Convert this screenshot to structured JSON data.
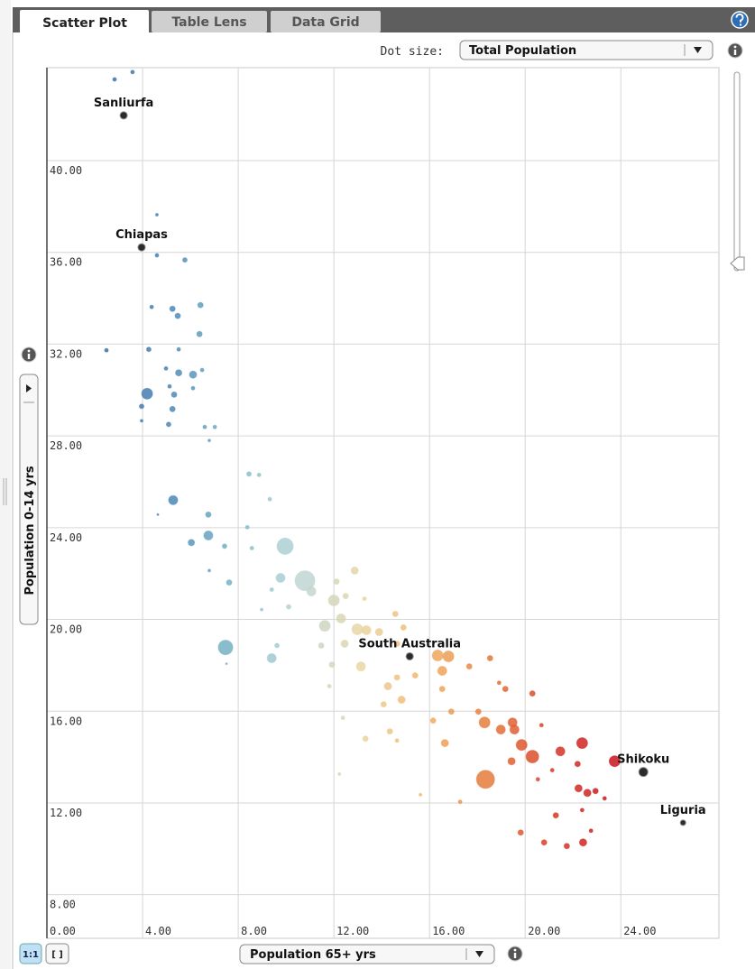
{
  "tabs": [
    "Scatter Plot",
    "Table Lens",
    "Data Grid"
  ],
  "dot_size_label": "Dot size:",
  "dot_size_value": "Total Population",
  "buttons": [
    "1:1",
    "[ ]"
  ],
  "chart_data": {
    "type": "scatter",
    "xlabel": "Population 65+ yrs",
    "ylabel": "Population 0-14 yrs",
    "xlim": [
      0,
      28.1
    ],
    "ylim": [
      6.1,
      44.05
    ],
    "xticks": [
      {
        "value": 0,
        "label": "0.00"
      },
      {
        "value": 4,
        "label": "4.00"
      },
      {
        "value": 8,
        "label": "8.00"
      },
      {
        "value": 12,
        "label": "12.00"
      },
      {
        "value": 16,
        "label": "16.00"
      },
      {
        "value": 20,
        "label": "20.00"
      },
      {
        "value": 24,
        "label": "24.00"
      }
    ],
    "yticks": [
      {
        "value": 8,
        "label": "8.00"
      },
      {
        "value": 12,
        "label": "12.00"
      },
      {
        "value": 16,
        "label": "16.00"
      },
      {
        "value": 20,
        "label": "20.00"
      },
      {
        "value": 24,
        "label": "24.00"
      },
      {
        "value": 28,
        "label": "28.00"
      },
      {
        "value": 32,
        "label": "32.00"
      },
      {
        "value": 36,
        "label": "36.00"
      },
      {
        "value": 40,
        "label": "40.00"
      }
    ],
    "grid": true,
    "color_scale": [
      "#3a6ea5",
      "#4a86b4",
      "#7ab6c6",
      "#b9d6d8",
      "#e8d6a4",
      "#f2b366",
      "#e57a3a",
      "#d63a26",
      "#c8141e"
    ],
    "highlight_color": "#2b2b2b",
    "x": [
      2.83,
      3.58,
      4.6,
      4.6,
      5.77,
      5.25,
      4.38,
      6.42,
      5.47,
      2.49,
      4.26,
      5.51,
      6.38,
      4.98,
      5.51,
      6.11,
      6.49,
      4.19,
      5.13,
      5.32,
      6.11,
      3.96,
      5.25,
      6.6,
      7.02,
      5.09,
      3.96,
      6.79,
      5.28,
      6.75,
      4.64,
      6.75,
      6.04,
      7.43,
      6.79,
      7.62,
      7.47,
      7.51,
      8.45,
      8.87,
      8.38,
      9.32,
      8.57,
      9.96,
      9.77,
      10.79,
      9.4,
      8.98,
      10.11,
      11.06,
      9.4,
      9.62,
      12.87,
      12.11,
      12.0,
      12.49,
      11.62,
      12.3,
      13.28,
      11.47,
      11.92,
      12.98,
      13.36,
      12.45,
      13.13,
      13.89,
      11.81,
      12.38,
      13.32,
      12.23,
      14.08,
      14.57,
      14.91,
      14.64,
      14.64,
      15.4,
      14.26,
      14.83,
      14.34,
      14.64,
      15.62,
      16.34,
      16.79,
      16.53,
      16.53,
      16.91,
      16.15,
      16.64,
      17.28,
      17.66,
      18.53,
      18.91,
      19.17,
      20.3,
      18.04,
      18.3,
      18.98,
      19.47,
      19.55,
      19.85,
      20.3,
      19.43,
      18.34,
      20.68,
      21.47,
      22.38,
      21.13,
      22.19,
      20.53,
      22.23,
      22.6,
      22.94,
      23.32,
      21.28,
      22.38,
      22.75,
      22.42,
      21.74,
      20.79,
      19.81,
      23.74
    ],
    "values": [
      43.54,
      43.86,
      37.64,
      35.87,
      35.67,
      33.54,
      33.62,
      33.7,
      33.23,
      31.73,
      31.77,
      31.77,
      32.44,
      30.94,
      30.75,
      30.67,
      30.87,
      29.84,
      30.16,
      29.8,
      30.08,
      29.29,
      29.17,
      28.39,
      28.39,
      28.5,
      28.66,
      27.8,
      25.2,
      24.57,
      24.57,
      23.66,
      23.35,
      23.19,
      22.13,
      21.61,
      18.78,
      18.07,
      26.34,
      26.3,
      24.02,
      25.24,
      23.11,
      23.19,
      21.81,
      21.69,
      21.3,
      20.43,
      20.55,
      21.22,
      18.31,
      18.86,
      22.13,
      21.65,
      20.83,
      21.02,
      19.72,
      20.04,
      20.9,
      18.86,
      18.03,
      19.57,
      19.53,
      18.94,
      17.95,
      19.45,
      17.09,
      15.71,
      14.8,
      13.26,
      16.3,
      20.24,
      19.65,
      18.94,
      17.47,
      17.56,
      17.09,
      16.5,
      15.12,
      14.72,
      12.36,
      18.43,
      18.39,
      17.76,
      16.97,
      15.98,
      15.59,
      14.61,
      12.05,
      17.95,
      18.31,
      17.24,
      16.97,
      16.77,
      15.98,
      15.51,
      15.2,
      15.51,
      15.2,
      14.53,
      14.02,
      13.82,
      13.03,
      15.39,
      14.25,
      14.61,
      13.43,
      13.7,
      13.03,
      12.64,
      12.44,
      12.52,
      12.2,
      11.46,
      11.69,
      10.79,
      10.28,
      10.12,
      10.28,
      10.71,
      13.82
    ],
    "sizes": [
      2,
      2,
      1.5,
      2,
      2.5,
      3,
      2,
      3,
      3,
      2,
      2.5,
      2,
      3,
      2,
      3.5,
      4,
      2,
      6,
      2,
      3,
      2,
      2.5,
      3,
      2,
      2,
      2.5,
      1.5,
      1.5,
      5,
      3,
      1,
      5,
      3.5,
      2.5,
      1.5,
      3,
      8,
      1,
      2.5,
      2,
      2,
      2,
      2,
      9,
      5,
      11,
      2,
      1.5,
      2.5,
      5,
      5,
      2.5,
      4,
      3,
      6,
      3,
      6,
      5,
      2,
      3,
      3,
      6,
      5,
      4,
      5,
      4,
      2,
      2,
      3,
      1.5,
      3,
      3,
      3,
      3,
      3,
      3,
      4,
      4,
      3,
      2,
      1.5,
      6,
      6,
      5,
      3,
      3,
      3,
      4,
      2,
      3,
      3,
      2,
      3,
      3,
      3,
      6,
      5,
      5,
      5,
      6,
      7,
      4,
      10,
      2,
      5,
      6,
      2,
      3,
      2,
      4,
      4,
      3,
      2,
      3,
      2,
      2,
      4,
      3,
      3,
      3,
      6
    ],
    "labeled_points": [
      {
        "label": "Sanliurfa",
        "x": 3.21,
        "y": 41.97,
        "size": 4
      },
      {
        "label": "Chiapas",
        "x": 3.96,
        "y": 36.22,
        "size": 4
      },
      {
        "label": "South Australia",
        "x": 15.17,
        "y": 18.39,
        "size": 4
      },
      {
        "label": "Shikoku",
        "x": 24.94,
        "y": 13.35,
        "size": 5
      },
      {
        "label": "Liguria",
        "x": 26.6,
        "y": 11.14,
        "size": 3
      }
    ]
  }
}
